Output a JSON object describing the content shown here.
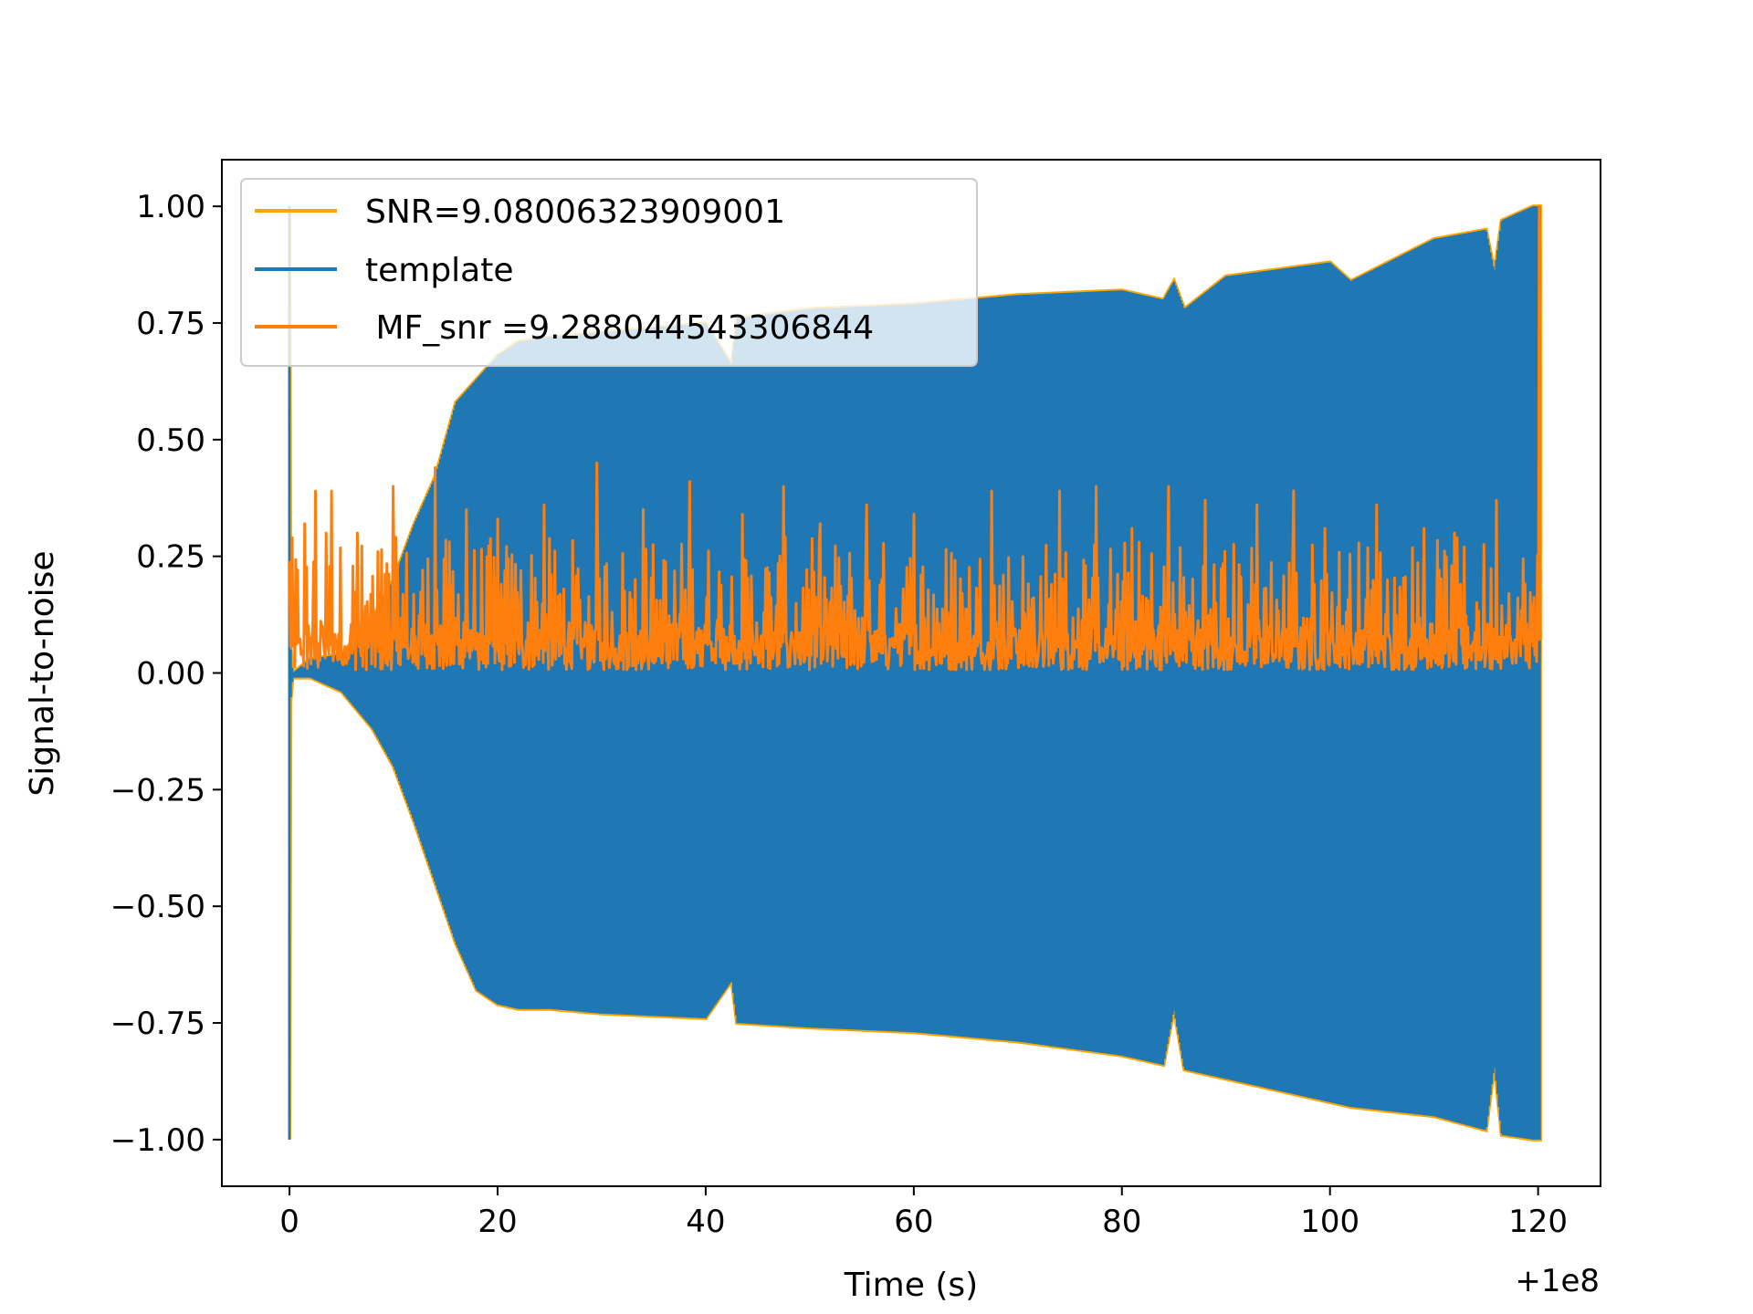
{
  "chart_data": {
    "type": "line",
    "title": "",
    "xlabel": "Time (s)",
    "ylabel": "Signal-to-noise",
    "x_offset_label": "+1e8",
    "xlim": [
      -6.5,
      126
    ],
    "ylim": [
      -1.1,
      1.1
    ],
    "grid": false,
    "legend_position": "upper-left",
    "x_ticks": [
      0,
      20,
      40,
      60,
      80,
      100,
      120
    ],
    "x_tick_labels": [
      "0",
      "20",
      "40",
      "60",
      "80",
      "100",
      "120"
    ],
    "y_ticks": [
      1.0,
      0.75,
      0.5,
      0.25,
      0.0,
      -0.25,
      -0.5,
      -0.75,
      -1.0
    ],
    "y_tick_labels": [
      "1.00",
      "0.75",
      "0.50",
      "0.25",
      "0.00",
      "−0.25",
      "−0.50",
      "−0.75",
      "−1.00"
    ],
    "series": [
      {
        "name": "SNR=9.08006323909001",
        "color": "#FFA500",
        "kind": "envelope",
        "x": [
          0,
          0.1,
          0.3,
          2,
          5,
          8,
          10,
          12,
          14,
          16,
          18,
          20,
          22,
          25,
          30,
          40,
          42.5,
          43,
          50,
          60,
          65,
          70,
          80,
          84,
          85,
          86,
          90,
          100,
          102,
          110,
          115,
          115.8,
          116.5,
          119.5,
          120.2
        ],
        "upper": [
          1.0,
          0.06,
          0.0,
          0.03,
          0.04,
          0.12,
          0.2,
          0.32,
          0.42,
          0.58,
          0.63,
          0.68,
          0.71,
          0.72,
          0.73,
          0.75,
          0.66,
          0.76,
          0.78,
          0.79,
          0.8,
          0.81,
          0.82,
          0.8,
          0.84,
          0.78,
          0.85,
          0.88,
          0.84,
          0.93,
          0.95,
          0.86,
          0.97,
          1.0,
          1.0
        ],
        "lower": [
          -1.0,
          -0.06,
          -0.01,
          -0.01,
          -0.04,
          -0.12,
          -0.2,
          -0.32,
          -0.45,
          -0.58,
          -0.68,
          -0.71,
          -0.72,
          -0.72,
          -0.73,
          -0.74,
          -0.66,
          -0.75,
          -0.76,
          -0.77,
          -0.78,
          -0.79,
          -0.82,
          -0.84,
          -0.72,
          -0.85,
          -0.87,
          -0.92,
          -0.93,
          -0.95,
          -0.98,
          -0.84,
          -0.99,
          -1.0,
          -1.0
        ]
      },
      {
        "name": "template",
        "color": "#1F77B4",
        "kind": "oscillation",
        "x": [
          0,
          0.1,
          0.3,
          2,
          5,
          8,
          10,
          12,
          14,
          16,
          18,
          20,
          22,
          25,
          30,
          40,
          42.5,
          43,
          50,
          60,
          65,
          70,
          80,
          84,
          85,
          86,
          90,
          100,
          102,
          110,
          115,
          115.8,
          116.5,
          119.5,
          120.2
        ],
        "upper": [
          1.0,
          0.06,
          0.0,
          0.03,
          0.04,
          0.12,
          0.2,
          0.32,
          0.42,
          0.58,
          0.63,
          0.68,
          0.71,
          0.72,
          0.73,
          0.75,
          0.66,
          0.76,
          0.78,
          0.79,
          0.8,
          0.81,
          0.82,
          0.8,
          0.84,
          0.78,
          0.85,
          0.88,
          0.84,
          0.93,
          0.95,
          0.86,
          0.97,
          1.0,
          1.0
        ],
        "lower": [
          -1.0,
          -0.06,
          -0.01,
          -0.01,
          -0.04,
          -0.12,
          -0.2,
          -0.32,
          -0.45,
          -0.58,
          -0.68,
          -0.71,
          -0.72,
          -0.72,
          -0.73,
          -0.74,
          -0.66,
          -0.75,
          -0.76,
          -0.77,
          -0.78,
          -0.79,
          -0.82,
          -0.84,
          -0.72,
          -0.85,
          -0.87,
          -0.92,
          -0.93,
          -0.95,
          -0.98,
          -0.84,
          -0.99,
          -1.0,
          -1.0
        ]
      },
      {
        "name": " MF_snr =9.288044543306844",
        "color": "#FF7F0E",
        "kind": "noise",
        "x_range": [
          0,
          120.2
        ],
        "baseline": 0.02,
        "typical_peak": 0.18,
        "max_peak": 1.0,
        "peaks": [
          {
            "x": 0.0,
            "y": 0.24
          },
          {
            "x": 1.5,
            "y": 0.32
          },
          {
            "x": 2.5,
            "y": 0.39
          },
          {
            "x": 3.5,
            "y": 0.3
          },
          {
            "x": 4.0,
            "y": 0.39
          },
          {
            "x": 6.5,
            "y": 0.3
          },
          {
            "x": 8.5,
            "y": 0.26
          },
          {
            "x": 10.0,
            "y": 0.4
          },
          {
            "x": 14.0,
            "y": 0.44
          },
          {
            "x": 17.0,
            "y": 0.35
          },
          {
            "x": 20.0,
            "y": 0.33
          },
          {
            "x": 24.5,
            "y": 0.36
          },
          {
            "x": 29.5,
            "y": 0.45
          },
          {
            "x": 34.0,
            "y": 0.35
          },
          {
            "x": 38.5,
            "y": 0.41
          },
          {
            "x": 43.5,
            "y": 0.34
          },
          {
            "x": 47.5,
            "y": 0.4
          },
          {
            "x": 51.0,
            "y": 0.32
          },
          {
            "x": 55.5,
            "y": 0.36
          },
          {
            "x": 60.0,
            "y": 0.34
          },
          {
            "x": 67.5,
            "y": 0.39
          },
          {
            "x": 74.0,
            "y": 0.39
          },
          {
            "x": 77.5,
            "y": 0.4
          },
          {
            "x": 81.0,
            "y": 0.31
          },
          {
            "x": 84.5,
            "y": 0.4
          },
          {
            "x": 88.0,
            "y": 0.37
          },
          {
            "x": 93.0,
            "y": 0.36
          },
          {
            "x": 96.5,
            "y": 0.39
          },
          {
            "x": 99.5,
            "y": 0.31
          },
          {
            "x": 104.5,
            "y": 0.36
          },
          {
            "x": 109.0,
            "y": 0.31
          },
          {
            "x": 112.0,
            "y": 0.3
          },
          {
            "x": 116.0,
            "y": 0.37
          },
          {
            "x": 120.1,
            "y": 1.0
          }
        ]
      }
    ]
  }
}
